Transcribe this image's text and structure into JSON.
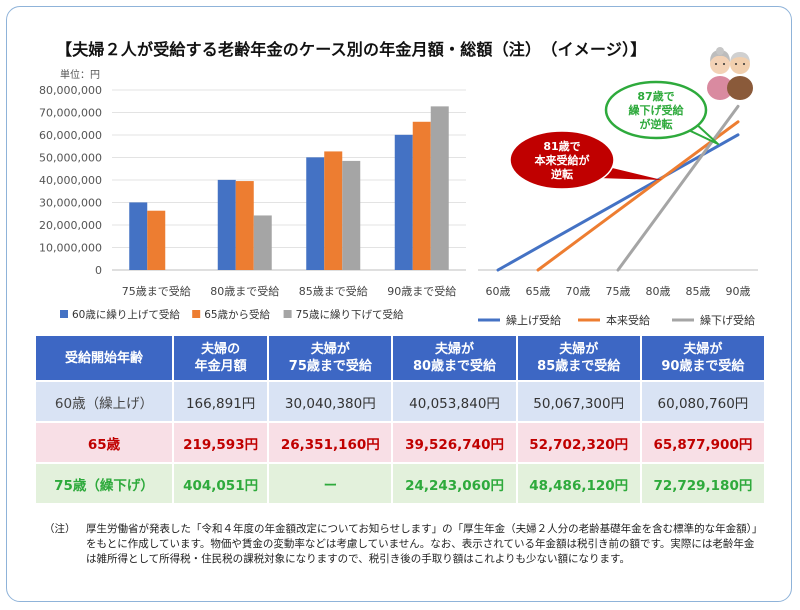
{
  "title": "【夫婦２人が受給する老齢年金のケース別の年金月額・総額（注）　（イメージ）】",
  "unit_label": "単位：円",
  "chart_data": [
    {
      "type": "bar",
      "categories": [
        "75歳まで受給",
        "80歳まで受給",
        "85歳まで受給",
        "90歳まで受給"
      ],
      "series": [
        {
          "name": "60歳に繰り上げて受給",
          "color": "#4472c4",
          "values": [
            30040380,
            40053840,
            50067300,
            60080760
          ]
        },
        {
          "name": "65歳から受給",
          "color": "#ed7d31",
          "values": [
            26351160,
            39526740,
            52702320,
            65877900
          ]
        },
        {
          "name": "75歳に繰り下げて受給",
          "color": "#a5a5a5",
          "values": [
            0,
            24243060,
            48486120,
            72729180
          ]
        }
      ],
      "ylim": [
        0,
        80000000
      ],
      "yticks": [
        "0",
        "10,000,000",
        "20,000,000",
        "30,000,000",
        "40,000,000",
        "50,000,000",
        "60,000,000",
        "70,000,000",
        "80,000,000"
      ],
      "grid": true,
      "legend_position": "bottom"
    },
    {
      "type": "line",
      "x": [
        "60歳",
        "65歳",
        "70歳",
        "75歳",
        "80歳",
        "85歳",
        "90歳"
      ],
      "series": [
        {
          "name": "繰上げ受給",
          "color": "#4472c4",
          "values": [
            0,
            10013460,
            20026920,
            30040380,
            40053840,
            50067300,
            60080760
          ]
        },
        {
          "name": "本来受給",
          "color": "#ed7d31",
          "values": [
            null,
            0,
            13175580,
            26351160,
            39526740,
            52702320,
            65877900
          ]
        },
        {
          "name": "繰下げ受給",
          "color": "#a5a5a5",
          "values": [
            null,
            null,
            null,
            0,
            24243060,
            48486120,
            72729180
          ]
        }
      ],
      "legend_position": "bottom",
      "annotations": [
        {
          "text": [
            "81歳で",
            "本来受給が",
            "逆転"
          ],
          "color": "#c00000"
        },
        {
          "text": [
            "87歳で",
            "繰下げ受給",
            "が逆転"
          ],
          "color": "#2eaa3c"
        }
      ]
    }
  ],
  "table": {
    "headers": [
      [
        "受給開始年齢"
      ],
      [
        "夫婦の",
        "年金月額"
      ],
      [
        "夫婦が",
        "75歳まで受給"
      ],
      [
        "夫婦が",
        "80歳まで受給"
      ],
      [
        "夫婦が",
        "85歳まで受給"
      ],
      [
        "夫婦が",
        "90歳まで受給"
      ]
    ],
    "rows": [
      [
        "60歳（繰上げ）",
        "166,891円",
        "30,040,380円",
        "40,053,840円",
        "50,067,300円",
        "60,080,760円"
      ],
      [
        "65歳",
        "219,593円",
        "26,351,160円",
        "39,526,740円",
        "52,702,320円",
        "65,877,900円"
      ],
      [
        "75歳（繰下げ）",
        "404,051円",
        "ー",
        "24,243,060円",
        "48,486,120円",
        "72,729,180円"
      ]
    ]
  },
  "note": {
    "prefix": "（注）",
    "text": "厚生労働省が発表した「令和４年度の年金額改定についてお知らせします」の「厚生年金（夫婦２人分の老齢基礎年金を含む標準的な年金額）」をもとに作成しています。物価や賃金の変動率などは考慮していません。なお、表示されている年金額は税引き前の額です。実際には老齢年金は雑所得として所得税・住民税の課税対象になりますので、税引き後の手取り額はこれよりも少ない額になります。"
  }
}
